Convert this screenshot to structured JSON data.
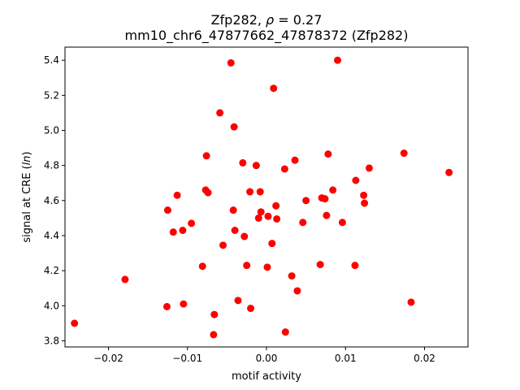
{
  "chart_data": {
    "type": "scatter",
    "title_line1_prefix": "Zfp282, ",
    "title_line1_rho": "ρ",
    "title_line1_suffix": " = 0.27",
    "title_line2": "mm10_chr6_47877662_47878372 (Zfp282)",
    "xlabel": "motif activity",
    "ylabel_prefix": "signal at CRE (",
    "ylabel_italic": "ln",
    "ylabel_suffix": ")",
    "xlim": [
      -0.0255,
      0.0255
    ],
    "ylim": [
      3.765,
      5.475
    ],
    "grid": false,
    "marker_color": "#ff0000",
    "x_ticks": [
      -0.02,
      -0.01,
      0.0,
      0.01,
      0.02
    ],
    "x_tick_labels": [
      "−0.02",
      "−0.01",
      "0.00",
      "0.01",
      "0.02"
    ],
    "y_ticks": [
      3.8,
      4.0,
      4.2,
      4.4,
      4.6,
      4.8,
      5.0,
      5.2,
      5.4
    ],
    "y_tick_labels": [
      "3.8",
      "4.0",
      "4.2",
      "4.4",
      "4.6",
      "4.8",
      "5.0",
      "5.2",
      "5.4"
    ],
    "points": [
      {
        "x": -0.0243,
        "y": 3.9
      },
      {
        "x": -0.0179,
        "y": 4.15
      },
      {
        "x": -0.0126,
        "y": 3.995
      },
      {
        "x": -0.0125,
        "y": 4.545
      },
      {
        "x": -0.0118,
        "y": 4.42
      },
      {
        "x": -0.0113,
        "y": 4.63
      },
      {
        "x": -0.0106,
        "y": 4.43
      },
      {
        "x": -0.0105,
        "y": 4.01
      },
      {
        "x": -0.0095,
        "y": 4.47
      },
      {
        "x": -0.0081,
        "y": 4.225
      },
      {
        "x": -0.0077,
        "y": 4.66
      },
      {
        "x": -0.0076,
        "y": 4.855
      },
      {
        "x": -0.0074,
        "y": 4.645
      },
      {
        "x": -0.0067,
        "y": 3.835
      },
      {
        "x": -0.0066,
        "y": 3.95
      },
      {
        "x": -0.0059,
        "y": 5.1
      },
      {
        "x": -0.0055,
        "y": 4.345
      },
      {
        "x": -0.0045,
        "y": 5.385
      },
      {
        "x": -0.0042,
        "y": 4.545
      },
      {
        "x": -0.0041,
        "y": 5.02
      },
      {
        "x": -0.004,
        "y": 4.43
      },
      {
        "x": -0.0036,
        "y": 4.03
      },
      {
        "x": -0.003,
        "y": 4.815
      },
      {
        "x": -0.0028,
        "y": 4.395
      },
      {
        "x": -0.0025,
        "y": 4.23
      },
      {
        "x": -0.0021,
        "y": 4.65
      },
      {
        "x": -0.002,
        "y": 3.985
      },
      {
        "x": -0.0013,
        "y": 4.8
      },
      {
        "x": -0.001,
        "y": 4.5
      },
      {
        "x": -0.0008,
        "y": 4.65
      },
      {
        "x": -0.0007,
        "y": 4.535
      },
      {
        "x": 0.0001,
        "y": 4.22
      },
      {
        "x": 0.0002,
        "y": 4.51
      },
      {
        "x": 0.0007,
        "y": 4.355
      },
      {
        "x": 0.0009,
        "y": 5.24
      },
      {
        "x": 0.0012,
        "y": 4.57
      },
      {
        "x": 0.0013,
        "y": 4.495
      },
      {
        "x": 0.0023,
        "y": 4.78
      },
      {
        "x": 0.0024,
        "y": 3.85
      },
      {
        "x": 0.0032,
        "y": 4.17
      },
      {
        "x": 0.0036,
        "y": 4.83
      },
      {
        "x": 0.0039,
        "y": 4.085
      },
      {
        "x": 0.0046,
        "y": 4.475
      },
      {
        "x": 0.005,
        "y": 4.6
      },
      {
        "x": 0.0068,
        "y": 4.235
      },
      {
        "x": 0.007,
        "y": 4.615
      },
      {
        "x": 0.0074,
        "y": 4.61
      },
      {
        "x": 0.0076,
        "y": 4.515
      },
      {
        "x": 0.0078,
        "y": 4.865
      },
      {
        "x": 0.0084,
        "y": 4.66
      },
      {
        "x": 0.009,
        "y": 5.4
      },
      {
        "x": 0.0096,
        "y": 4.475
      },
      {
        "x": 0.0112,
        "y": 4.23
      },
      {
        "x": 0.0113,
        "y": 4.715
      },
      {
        "x": 0.0123,
        "y": 4.63
      },
      {
        "x": 0.0124,
        "y": 4.585
      },
      {
        "x": 0.013,
        "y": 4.785
      },
      {
        "x": 0.0174,
        "y": 4.87
      },
      {
        "x": 0.0183,
        "y": 4.02
      },
      {
        "x": 0.0231,
        "y": 4.76
      }
    ]
  }
}
